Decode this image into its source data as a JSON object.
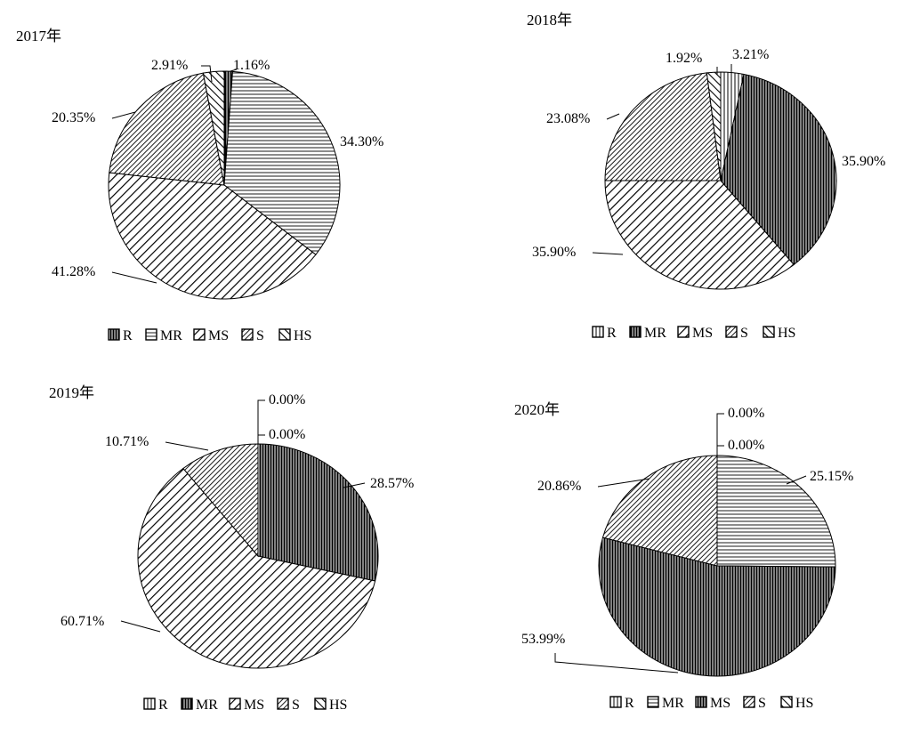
{
  "patterns": {
    "R": "vertical",
    "MR": "horizontal",
    "MS": "diag-forward",
    "S": "diag-forward-dense",
    "HS": "diag-back"
  },
  "chart_data": [
    {
      "type": "pie",
      "title": "2017年",
      "categories": [
        "R",
        "MR",
        "MS",
        "S",
        "HS"
      ],
      "values": [
        1.16,
        34.3,
        41.28,
        20.35,
        2.91
      ],
      "slice_labels": [
        "1.16%",
        "34.30%",
        "41.28%",
        "20.35%",
        "2.91%"
      ],
      "legend": [
        {
          "key": "R",
          "pattern": "solid-bars"
        },
        {
          "key": "MR",
          "pattern": "horizontal"
        },
        {
          "key": "MS",
          "pattern": "diag-forward"
        },
        {
          "key": "S",
          "pattern": "diag-forward-dense"
        },
        {
          "key": "HS",
          "pattern": "diag-back"
        }
      ],
      "legend_placement": "bottom"
    },
    {
      "type": "pie",
      "title": "2018年",
      "categories": [
        "R",
        "MR",
        "MS",
        "S",
        "HS"
      ],
      "values": [
        3.21,
        35.9,
        35.9,
        23.08,
        1.92
      ],
      "slice_labels": [
        "3.21%",
        "35.90%",
        "35.90%",
        "23.08%",
        "1.92%"
      ],
      "legend": [
        {
          "key": "R",
          "pattern": "vertical"
        },
        {
          "key": "MR",
          "pattern": "solid-bars"
        },
        {
          "key": "MS",
          "pattern": "diag-forward"
        },
        {
          "key": "S",
          "pattern": "diag-forward-dense"
        },
        {
          "key": "HS",
          "pattern": "diag-back"
        }
      ],
      "legend_placement": "bottom"
    },
    {
      "type": "pie",
      "title": "2019年",
      "categories": [
        "R",
        "MR",
        "MS",
        "S",
        "HS"
      ],
      "values": [
        0.0,
        28.57,
        60.71,
        10.71,
        0.0
      ],
      "slice_labels": [
        "0.00%",
        "28.57%",
        "60.71%",
        "10.71%",
        "0.00%"
      ],
      "legend": [
        {
          "key": "R",
          "pattern": "vertical"
        },
        {
          "key": "MR",
          "pattern": "solid-bars"
        },
        {
          "key": "MS",
          "pattern": "diag-forward"
        },
        {
          "key": "S",
          "pattern": "diag-forward-dense"
        },
        {
          "key": "HS",
          "pattern": "diag-back"
        }
      ],
      "legend_placement": "bottom"
    },
    {
      "type": "pie",
      "title": "2020年",
      "categories": [
        "R",
        "MR",
        "MS",
        "S",
        "HS"
      ],
      "values": [
        0.0,
        25.15,
        53.99,
        20.86,
        0.0
      ],
      "slice_labels": [
        "0.00%",
        "25.15%",
        "53.99%",
        "20.86%",
        "0.00%"
      ],
      "legend": [
        {
          "key": "R",
          "pattern": "vertical"
        },
        {
          "key": "MR",
          "pattern": "horizontal"
        },
        {
          "key": "MS",
          "pattern": "solid-bars"
        },
        {
          "key": "S",
          "pattern": "diag-forward-dense"
        },
        {
          "key": "HS",
          "pattern": "diag-back"
        }
      ],
      "legend_placement": "bottom"
    }
  ]
}
